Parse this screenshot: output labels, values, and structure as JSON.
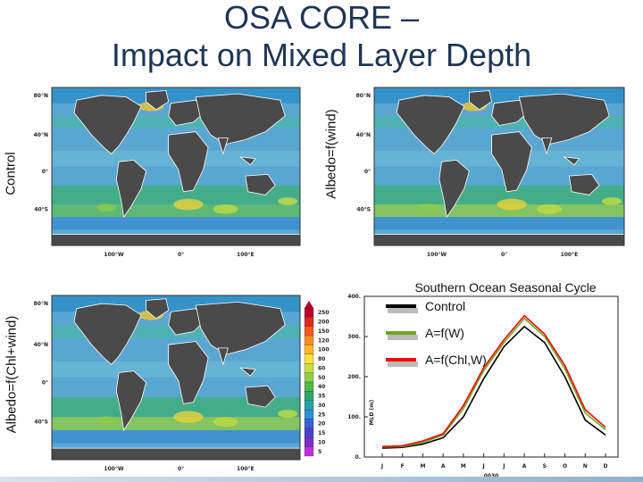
{
  "title": {
    "line1": "OSA CORE –",
    "line2": "Impact on Mixed Layer Depth"
  },
  "panels": {
    "control_label": "Control",
    "albedo_wind_label": "Albedo=f(wind)",
    "albedo_chl_wind_label": "Albedo=f(Chl+wind)",
    "lat_ticks": [
      "80°N",
      "40°N",
      "0°",
      "40°S"
    ],
    "lon_ticks": [
      "100°W",
      "0°",
      "100°E"
    ]
  },
  "colorbar": {
    "labels": [
      "250",
      "200",
      "150",
      "120",
      "100",
      "80",
      "60",
      "50",
      "40",
      "35",
      "30",
      "25",
      "20",
      "15",
      "10",
      "5"
    ],
    "colors": [
      "#b8002c",
      "#e0261f",
      "#f25a1d",
      "#f78c24",
      "#fbb728",
      "#f8e23c",
      "#c9e044",
      "#8fd04a",
      "#4cb848",
      "#2ea36a",
      "#26a0a4",
      "#2b8fd0",
      "#3a62d8",
      "#4a3fcf",
      "#7a2fc8",
      "#c12fd6"
    ]
  },
  "chart_data": {
    "type": "line",
    "title": "Southern Ocean Seasonal Cycle",
    "xlabel": "0030",
    "ylabel": "MLD (m)",
    "categories": [
      "J",
      "F",
      "M",
      "A",
      "M",
      "J",
      "J",
      "A",
      "S",
      "O",
      "N",
      "D"
    ],
    "yticks": [
      "0.",
      "100.",
      "200.",
      "300.",
      "400."
    ],
    "ylim": [
      0,
      400
    ],
    "series": [
      {
        "name": "Control",
        "color": "#000000",
        "values": [
          22,
          24,
          32,
          48,
          100,
          195,
          275,
          325,
          285,
          200,
          92,
          55
        ]
      },
      {
        "name": "A=f(W)",
        "color": "#6aaa1e",
        "values": [
          25,
          26,
          36,
          55,
          120,
          215,
          285,
          345,
          300,
          220,
          110,
          68
        ]
      },
      {
        "name": "A=f(Chl,W)",
        "color": "#ff0000",
        "values": [
          26,
          28,
          40,
          58,
          128,
          222,
          292,
          352,
          306,
          228,
          118,
          74
        ]
      }
    ],
    "legend_position": "top-left"
  }
}
